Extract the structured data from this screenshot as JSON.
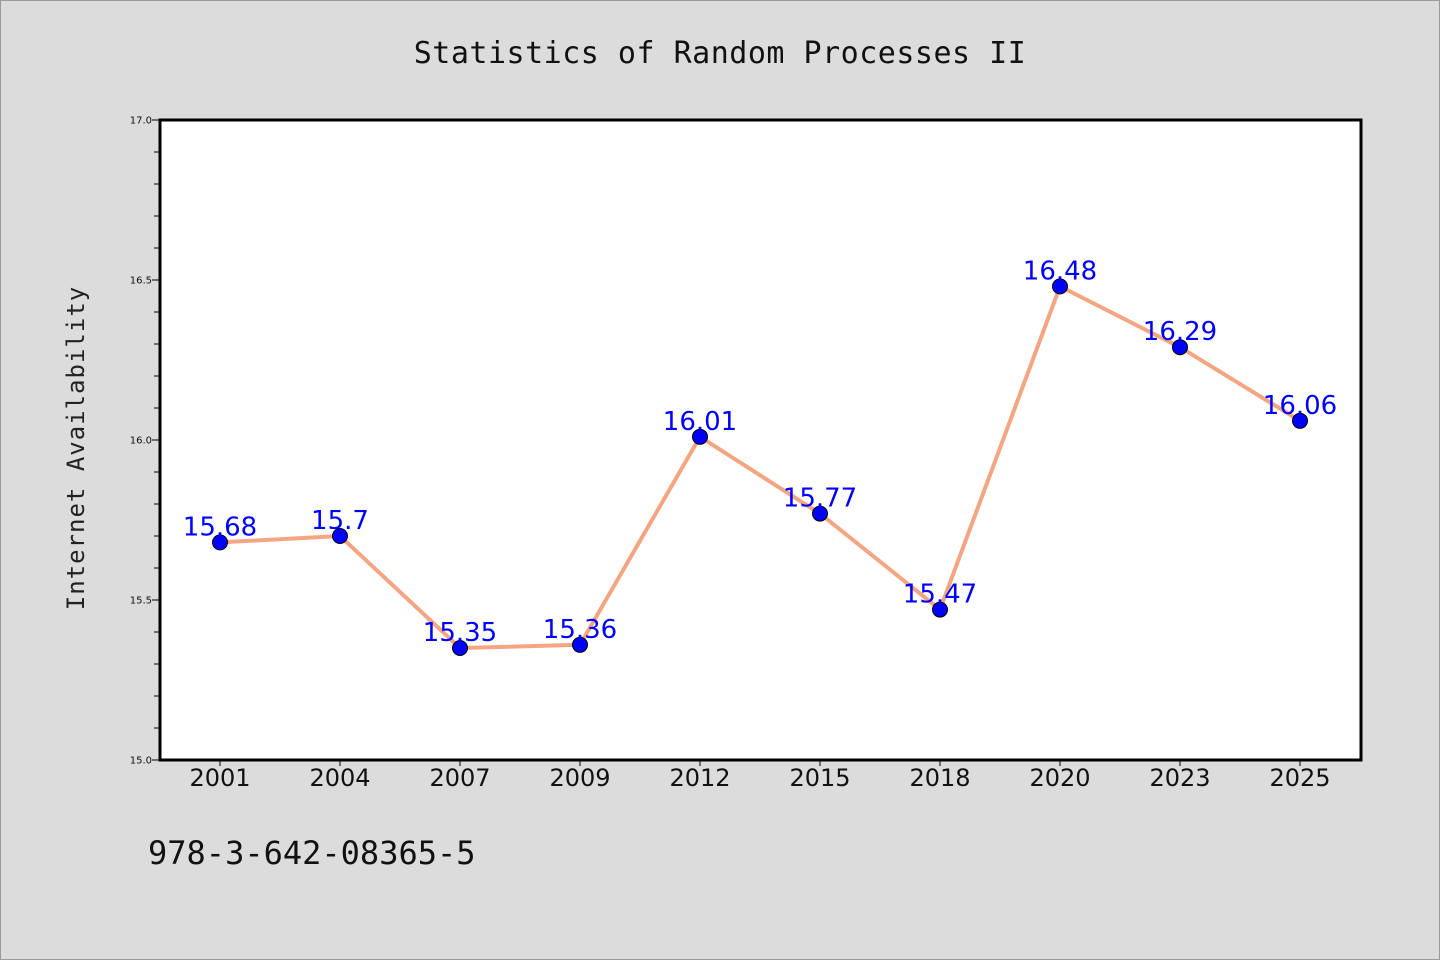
{
  "chart_data": {
    "type": "line",
    "title": "Statistics of Random Processes II",
    "ylabel": "Internet Availability",
    "xlabel": "",
    "categories": [
      "2001",
      "2004",
      "2007",
      "2009",
      "2012",
      "2015",
      "2018",
      "2020",
      "2023",
      "2025"
    ],
    "series": [
      {
        "values": [
          15.68,
          15.7,
          15.35,
          15.36,
          16.01,
          15.77,
          15.47,
          16.48,
          16.29,
          16.06
        ],
        "labels": [
          "15.68",
          "15.7",
          "15.35",
          "15.36",
          "16.01",
          "15.77",
          "15.47",
          "16.48",
          "16.29",
          "16.06"
        ],
        "line_color": "#f4a582",
        "marker_color": "#0000ff",
        "label_color": "#0000ff"
      }
    ],
    "ylim": [
      15.0,
      17.0
    ],
    "yticks": [
      "15.0",
      "15.5",
      "16.0",
      "16.5",
      "17.0"
    ],
    "grid": false,
    "legend": "none"
  },
  "caption": "978-3-642-08365-5",
  "colors": {
    "background": "#dcdcdc",
    "plot_background": "#ffffff"
  }
}
